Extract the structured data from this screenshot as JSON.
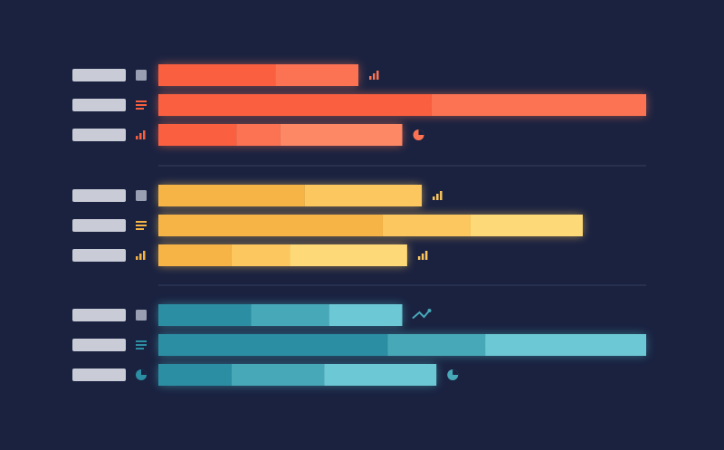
{
  "theme": {
    "background": "#1a2240",
    "label_placeholder": "#c9ccd6",
    "icon_neutral": "#9aa0b2",
    "divider": "#2c3554"
  },
  "chart_data": {
    "type": "bar",
    "orientation": "horizontal",
    "stacked": true,
    "title": "",
    "xlabel": "",
    "ylabel": "",
    "xlim": [
      0,
      100
    ],
    "grid": false,
    "legend": "none",
    "axis_labels_visible": false,
    "groups": [
      {
        "name": "",
        "palette": [
          "#fa5f3f",
          "#fb7352",
          "#fd8865"
        ],
        "rows": [
          {
            "label": "",
            "icon": "square-icon",
            "trailing_icon": "bar-chart-icon",
            "segments": [
              24,
              17
            ]
          },
          {
            "label": "",
            "icon": "lines-icon",
            "trailing_icon": "",
            "segments": [
              56,
              44
            ]
          },
          {
            "label": "",
            "icon": "bar-chart-icon",
            "trailing_icon": "pie-chart-icon",
            "segments": [
              16,
              9,
              25
            ]
          }
        ]
      },
      {
        "name": "",
        "palette": [
          "#f6b446",
          "#fbc75e",
          "#fed978"
        ],
        "rows": [
          {
            "label": "",
            "icon": "square-icon",
            "trailing_icon": "bar-chart-icon",
            "segments": [
              30,
              24
            ]
          },
          {
            "label": "",
            "icon": "lines-icon",
            "trailing_icon": "",
            "segments": [
              46,
              18,
              23
            ]
          },
          {
            "label": "",
            "icon": "bar-chart-icon",
            "trailing_icon": "bar-chart-icon",
            "segments": [
              15,
              12,
              24
            ]
          }
        ]
      },
      {
        "name": "",
        "palette": [
          "#2b8ea3",
          "#47a8b8",
          "#6cc8d4"
        ],
        "rows": [
          {
            "label": "",
            "icon": "square-icon",
            "trailing_icon": "trend-icon",
            "segments": [
              19,
              16,
              15
            ]
          },
          {
            "label": "",
            "icon": "lines-icon",
            "trailing_icon": "",
            "segments": [
              47,
              20,
              33
            ]
          },
          {
            "label": "",
            "icon": "pie-chart-icon",
            "trailing_icon": "pie-chart-icon",
            "segments": [
              15,
              19,
              23
            ]
          }
        ]
      }
    ]
  }
}
